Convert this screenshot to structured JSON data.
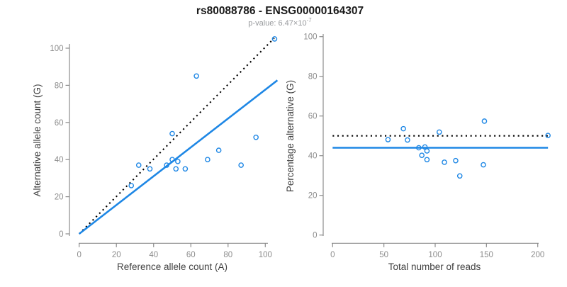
{
  "title": "rs80088786 - ENSG00000164307",
  "subtitle": {
    "prefix": "p-value: 6.47×10",
    "exponent": "-7"
  },
  "colors": {
    "points": "#1e87e5",
    "fit_line": "#1e87e5",
    "reference_line": "#000000",
    "axis": "#8c8c8c",
    "tick_labels": "#8c8c8c",
    "axis_titles": "#404040",
    "title": "#1a1a1a",
    "subtitle": "#97999c",
    "background": "#ffffff"
  },
  "chart_data": [
    {
      "type": "scatter",
      "panel": "left",
      "xlabel": "Reference allele count (A)",
      "ylabel": "Alternative allele count (G)",
      "xlim": [
        0,
        106
      ],
      "ylim": [
        0,
        106
      ],
      "xticks": [
        0,
        20,
        40,
        60,
        80,
        100
      ],
      "yticks": [
        0,
        20,
        40,
        60,
        80,
        100
      ],
      "grid": false,
      "legend": "none",
      "marker": "open-circle",
      "points": [
        [
          105,
          105
        ],
        [
          63,
          85
        ],
        [
          50,
          54
        ],
        [
          95,
          52
        ],
        [
          75,
          45
        ],
        [
          50,
          40
        ],
        [
          69,
          40
        ],
        [
          53,
          39
        ],
        [
          32,
          37
        ],
        [
          47,
          37
        ],
        [
          87,
          37
        ],
        [
          38,
          35
        ],
        [
          52,
          35
        ],
        [
          57,
          35
        ],
        [
          28,
          26
        ]
      ],
      "lines": [
        {
          "name": "identity-line",
          "style": "dotted",
          "color": "#000000",
          "x1": 0,
          "y1": 0,
          "x2": 104.8,
          "y2": 105.4
        },
        {
          "name": "fit-line",
          "style": "solid",
          "color": "#1e87e5",
          "x1": 0,
          "y1": 0,
          "x2": 106.5,
          "y2": 82.7
        }
      ]
    },
    {
      "type": "scatter",
      "panel": "right",
      "xlabel": "Total number of reads",
      "ylabel": "Percentage alternative (G)",
      "xlim": [
        0,
        212
      ],
      "ylim": [
        0,
        100
      ],
      "xticks": [
        0,
        50,
        100,
        150,
        200
      ],
      "yticks": [
        0,
        20,
        40,
        60,
        80,
        100
      ],
      "grid": false,
      "legend": "none",
      "marker": "open-circle",
      "points": [
        [
          210,
          50.2
        ],
        [
          148,
          57.4
        ],
        [
          104,
          51.9
        ],
        [
          147,
          35.4
        ],
        [
          120,
          37.5
        ],
        [
          90,
          44.4
        ],
        [
          109,
          36.7
        ],
        [
          92,
          42.4
        ],
        [
          69,
          53.6
        ],
        [
          84,
          44.0
        ],
        [
          124,
          29.8
        ],
        [
          73,
          47.9
        ],
        [
          87,
          40.2
        ],
        [
          92,
          38.0
        ],
        [
          54,
          48.1
        ]
      ],
      "lines": [
        {
          "name": "expected-percentage-line",
          "style": "dotted",
          "color": "#000000",
          "x1": 0,
          "y1": 50,
          "x2": 211,
          "y2": 50
        },
        {
          "name": "fit-percentage-line",
          "style": "solid",
          "color": "#1e87e5",
          "x1": 0,
          "y1": 44,
          "x2": 210,
          "y2": 44
        }
      ]
    }
  ]
}
